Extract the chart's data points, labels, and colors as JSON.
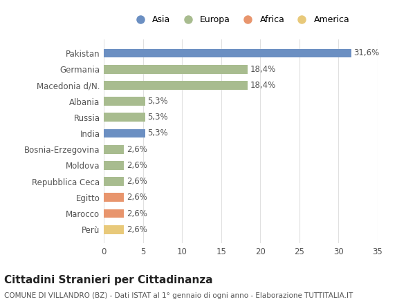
{
  "categories": [
    "Perù",
    "Marocco",
    "Egitto",
    "Repubblica Ceca",
    "Moldova",
    "Bosnia-Erzegovina",
    "India",
    "Russia",
    "Albania",
    "Macedonia d/N.",
    "Germania",
    "Pakistan"
  ],
  "values": [
    2.6,
    2.6,
    2.6,
    2.6,
    2.6,
    2.6,
    5.3,
    5.3,
    5.3,
    18.4,
    18.4,
    31.6
  ],
  "labels": [
    "2,6%",
    "2,6%",
    "2,6%",
    "2,6%",
    "2,6%",
    "2,6%",
    "5,3%",
    "5,3%",
    "5,3%",
    "18,4%",
    "18,4%",
    "31,6%"
  ],
  "colors": [
    "#e8c97a",
    "#e8956d",
    "#e8956d",
    "#a8bc8f",
    "#a8bc8f",
    "#a8bc8f",
    "#6b8fc2",
    "#a8bc8f",
    "#a8bc8f",
    "#a8bc8f",
    "#a8bc8f",
    "#6b8fc2"
  ],
  "legend_labels": [
    "Asia",
    "Europa",
    "Africa",
    "America"
  ],
  "legend_colors": [
    "#6b8fc2",
    "#a8bc8f",
    "#e8956d",
    "#e8c97a"
  ],
  "title": "Cittadini Stranieri per Cittadinanza",
  "subtitle": "COMUNE DI VILLANDRO (BZ) - Dati ISTAT al 1° gennaio di ogni anno - Elaborazione TUTTITALIA.IT",
  "xlim": [
    0,
    35
  ],
  "xticks": [
    0,
    5,
    10,
    15,
    20,
    25,
    30,
    35
  ],
  "bg_color": "#ffffff",
  "grid_color": "#e0e0e0",
  "bar_height": 0.55,
  "label_fontsize": 8.5,
  "tick_fontsize": 8.5,
  "title_fontsize": 11,
  "subtitle_fontsize": 7.5
}
